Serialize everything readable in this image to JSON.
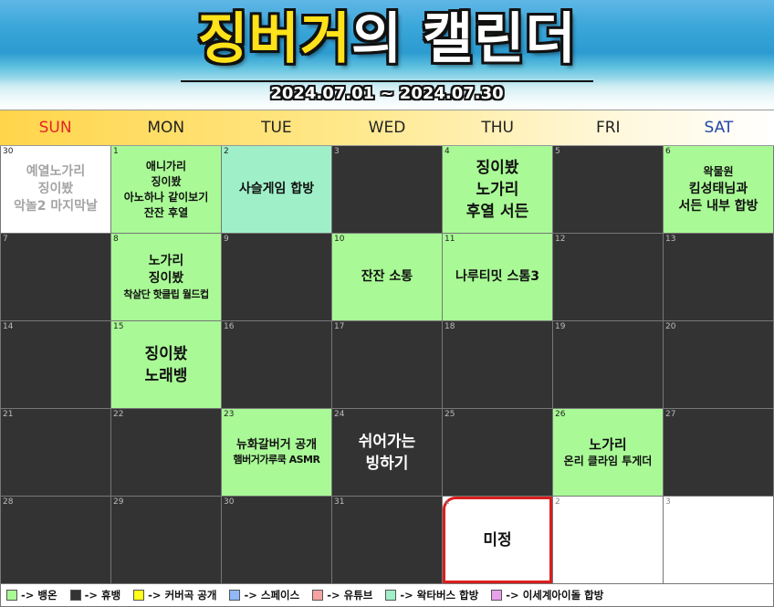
{
  "header": {
    "title_accent": "징버거",
    "title_rest": "의 캘린더",
    "date_range": "2024.07.01 ~ 2024.07.30"
  },
  "weekdays": [
    "SUN",
    "MON",
    "TUE",
    "WED",
    "THU",
    "FRI",
    "SAT"
  ],
  "colors": {
    "green": "#a9fa96",
    "rest": "#333333",
    "mint": "#9ff0c8",
    "sun": "#e52525",
    "sat": "#2147a8",
    "highlight_border": "#d91e1e"
  },
  "cells": [
    {
      "day": "30",
      "lines": [
        "예열노가리",
        "징이봤",
        "악놀2 마지막날"
      ]
    },
    {
      "day": "1",
      "lines": [
        "애니가리",
        "징이봤",
        "아노하나 같이보기",
        "잔잔 후열"
      ]
    },
    {
      "day": "2",
      "lines": [
        "사슬게임 합방"
      ]
    },
    {
      "day": "3",
      "lines": []
    },
    {
      "day": "4",
      "lines": [
        "징이봤",
        "노가리",
        "후열 서든"
      ]
    },
    {
      "day": "5",
      "lines": []
    },
    {
      "day": "6",
      "lines": [
        "왁물원",
        "킴성태님과",
        "서든 내부 합방"
      ]
    },
    {
      "day": "7",
      "lines": []
    },
    {
      "day": "8",
      "lines": [
        "노가리",
        "징이봤",
        "착살단 핫클립 월드컵"
      ]
    },
    {
      "day": "9",
      "lines": []
    },
    {
      "day": "10",
      "lines": [
        "잔잔 소통"
      ]
    },
    {
      "day": "11",
      "lines": [
        "나루티밋 스톰3"
      ]
    },
    {
      "day": "12",
      "lines": []
    },
    {
      "day": "13",
      "lines": []
    },
    {
      "day": "14",
      "lines": []
    },
    {
      "day": "15",
      "lines": [
        "징이봤",
        "노래뱅"
      ]
    },
    {
      "day": "16",
      "lines": []
    },
    {
      "day": "17",
      "lines": []
    },
    {
      "day": "18",
      "lines": []
    },
    {
      "day": "19",
      "lines": []
    },
    {
      "day": "20",
      "lines": []
    },
    {
      "day": "21",
      "lines": []
    },
    {
      "day": "22",
      "lines": []
    },
    {
      "day": "23",
      "lines": [
        "뉴화갈버거 공개",
        "햄버거가루쿡 ASMR"
      ]
    },
    {
      "day": "24",
      "lines": [
        "쉬어가는",
        "빙하기"
      ]
    },
    {
      "day": "25",
      "lines": []
    },
    {
      "day": "26",
      "lines": [
        "노가리",
        "온리 클라임 투게더"
      ]
    },
    {
      "day": "27",
      "lines": []
    },
    {
      "day": "28",
      "lines": []
    },
    {
      "day": "29",
      "lines": []
    },
    {
      "day": "30",
      "lines": []
    },
    {
      "day": "31",
      "lines": []
    },
    {
      "day": "1",
      "lines": [
        "미정"
      ]
    },
    {
      "day": "2",
      "lines": []
    },
    {
      "day": "3",
      "lines": []
    }
  ],
  "legend": [
    {
      "label": "-> 뱅온",
      "color": "#a9fa96"
    },
    {
      "label": "-> 휴뱅",
      "color": "#333333"
    },
    {
      "label": "-> 커버곡 공개",
      "color": "#ffff1a"
    },
    {
      "label": "-> 스페이스",
      "color": "#8fb8f5"
    },
    {
      "label": "-> 유튜브",
      "color": "#f5a3a3"
    },
    {
      "label": "-> 왁타버스 합방",
      "color": "#9ff0c8"
    },
    {
      "label": "-> 이세계아이돌 합방",
      "color": "#e8a0ec"
    }
  ]
}
